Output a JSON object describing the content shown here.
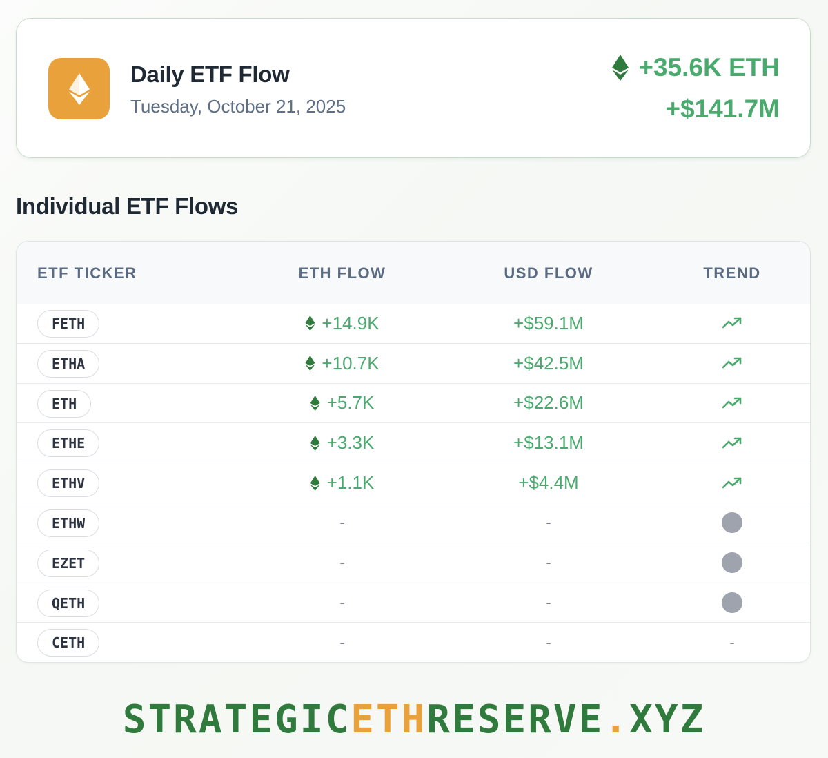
{
  "summary": {
    "title": "Daily ETF Flow",
    "date": "Tuesday, October 21, 2025",
    "total_eth": "+35.6K ETH",
    "total_usd": "+$141.7M"
  },
  "section_title": "Individual ETF Flows",
  "table": {
    "headers": {
      "ticker": "ETF TICKER",
      "eth_flow": "ETH FLOW",
      "usd_flow": "USD FLOW",
      "trend": "TREND"
    },
    "rows": [
      {
        "ticker": "FETH",
        "eth_flow": "+14.9K",
        "usd_flow": "+$59.1M",
        "trend": "up"
      },
      {
        "ticker": "ETHA",
        "eth_flow": "+10.7K",
        "usd_flow": "+$42.5M",
        "trend": "up"
      },
      {
        "ticker": "ETH",
        "eth_flow": "+5.7K",
        "usd_flow": "+$22.6M",
        "trend": "up"
      },
      {
        "ticker": "ETHE",
        "eth_flow": "+3.3K",
        "usd_flow": "+$13.1M",
        "trend": "up"
      },
      {
        "ticker": "ETHV",
        "eth_flow": "+1.1K",
        "usd_flow": "+$4.4M",
        "trend": "up"
      },
      {
        "ticker": "ETHW",
        "eth_flow": "-",
        "usd_flow": "-",
        "trend": "neutral"
      },
      {
        "ticker": "EZET",
        "eth_flow": "-",
        "usd_flow": "-",
        "trend": "neutral"
      },
      {
        "ticker": "QETH",
        "eth_flow": "-",
        "usd_flow": "-",
        "trend": "neutral"
      },
      {
        "ticker": "CETH",
        "eth_flow": "-",
        "usd_flow": "-",
        "trend": "-"
      }
    ]
  },
  "footer": {
    "part1": "STRATEGIC",
    "part2": "ETH",
    "part3": "RESERVE",
    "dot": ".",
    "part4": "XYZ"
  },
  "colors": {
    "accent_green": "#4aaa6e",
    "eth_icon_green": "#2f7a3c",
    "badge_orange": "#e9a23b",
    "neutral_gray": "#9ea3ae"
  },
  "icons": {
    "badge": "ethereum-icon",
    "flow": "ethereum-diamond-icon",
    "trend_up": "trending-up-icon",
    "trend_neutral": "gray-dot-icon"
  }
}
